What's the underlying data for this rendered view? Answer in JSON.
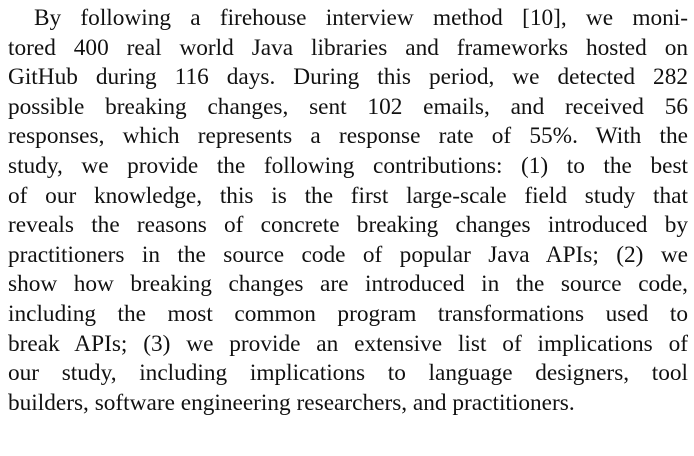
{
  "paragraph": {
    "lines": [
      "By following a firehouse interview method [10], we moni-",
      "tored 400 real world Java libraries and frameworks hosted on",
      "GitHub during 116 days. During this period, we detected 282",
      "possible breaking changes, sent 102 emails, and received 56",
      "responses, which represents a response rate of 55%. With the",
      "study, we provide the following contributions: (1) to the best",
      "of our knowledge, this is the first large-scale field study that",
      "reveals the reasons of concrete breaking changes introduced by",
      "practitioners in the source code of popular Java APIs; (2) we",
      "show how breaking changes are introduced in the source code,",
      "including the most common program transformations used to",
      "break APIs; (3) we provide an extensive list of implications of",
      "our study, including implications to language designers, tool",
      "builders, software engineering researchers, and practitioners."
    ]
  }
}
